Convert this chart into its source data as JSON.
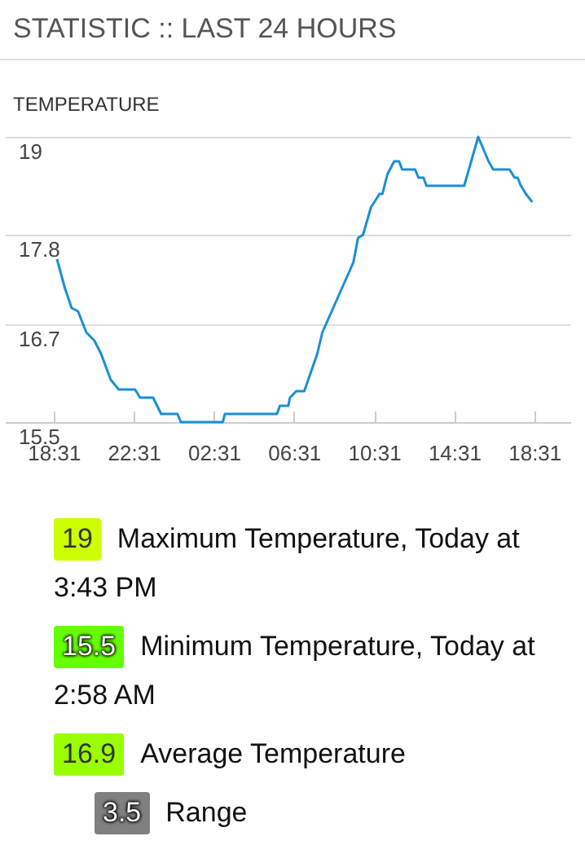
{
  "chart_data": [
    {
      "type": "line",
      "title": "STATISTIC :: LAST 24 HOURS",
      "subtitle": "TEMPERATURE",
      "x": [
        "--01-01T18:41",
        "--01-01T19:05",
        "--01-01T19:25",
        "--01-01T19:44",
        "--01-01T20:09",
        "--01-01T20:33",
        "--01-01T20:53",
        "--01-01T21:22",
        "--01-01T21:46",
        "--01-01T22:35",
        "--01-01T22:50",
        "--01-01T23:29",
        "--01-01T23:53",
        "--01-02T00:42",
        "--01-02T00:52",
        "--01-02T02:58",
        "--01-02T03:04",
        "--01-02T05:40",
        "--01-02T05:49",
        "--01-02T06:14",
        "--01-02T06:19",
        "--01-02T06:38",
        "--01-02T07:02",
        "--01-02T07:41",
        "--01-02T07:56",
        "--01-02T09:29",
        "--01-02T09:43",
        "--01-02T09:58",
        "--01-02T10:22",
        "--01-02T10:32",
        "--01-02T10:47",
        "--01-02T10:56",
        "--01-02T11:11",
        "--01-02T11:31",
        "--01-02T11:46",
        "--01-02T11:55",
        "--01-02T12:34",
        "--01-02T12:44",
        "--01-02T12:59",
        "--01-02T13:08",
        "--01-02T15:01",
        "--01-02T15:43",
        "--01-02T16:14",
        "--01-02T16:28",
        "--01-02T17:17",
        "--01-02T17:32",
        "--01-02T17:41",
        "--01-02T17:51",
        "--01-02T18:06",
        "--01-02T18:25"
      ],
      "series": [
        {
          "color": "#1a8fd6",
          "values": [
            17.5,
            17.14,
            16.9,
            16.86,
            16.6,
            16.5,
            16.34,
            16.02,
            15.9,
            15.9,
            15.8,
            15.8,
            15.6,
            15.6,
            15.5,
            15.5,
            15.6,
            15.6,
            15.7,
            15.7,
            15.8,
            15.88,
            15.88,
            16.34,
            16.6,
            17.46,
            17.76,
            17.8,
            18.14,
            18.2,
            18.3,
            18.3,
            18.54,
            18.7,
            18.7,
            18.6,
            18.6,
            18.5,
            18.5,
            18.4,
            18.4,
            19.0,
            18.7,
            18.6,
            18.6,
            18.5,
            18.5,
            18.4,
            18.3,
            18.2
          ]
        }
      ],
      "xlim": [
        "--01-01T16:05",
        "--01-02T20:19"
      ],
      "xticks": [
        {
          "value": "--01-01T18:31",
          "label": "18:31"
        },
        {
          "value": "--01-01T22:31",
          "label": "22:31"
        },
        {
          "value": "--01-02T02:31",
          "label": "02:31"
        },
        {
          "value": "--01-02T06:31",
          "label": "06:31"
        },
        {
          "value": "--01-02T10:31",
          "label": "10:31"
        },
        {
          "value": "--01-02T14:31",
          "label": "14:31"
        },
        {
          "value": "--01-02T18:31",
          "label": "18:31"
        }
      ],
      "ylim": [
        15.5,
        19
      ],
      "yticks": [
        15.5,
        16.7,
        17.8,
        19
      ],
      "grid": "y",
      "marker": "none",
      "line_style": "solid"
    },
    {
      "type": "other",
      "categories": [
        "Maximum Temperature, Today at 3:43 PM",
        "Minimum Temperature, Today at 2:58 AM",
        "Average Temperature",
        "Range"
      ],
      "values": [
        19,
        15.5,
        16.9,
        3.5
      ],
      "data_labels": true,
      "colors": [
        "#ccff00",
        "#66ff00",
        "#99ff00",
        "#808080"
      ]
    }
  ]
}
